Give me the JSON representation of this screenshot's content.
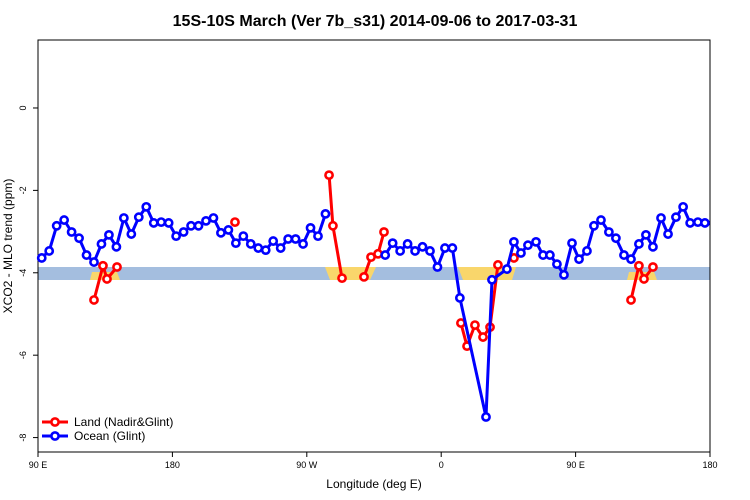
{
  "chart_data": {
    "type": "line",
    "title": "15S-10S March (Ver 7b_s31)   2014-09-06 to 2017-03-31",
    "x_label": "Longitude (deg E)",
    "y_label": "XCO2 - MLO trend (ppm)",
    "xlim": [
      90,
      540
    ],
    "xticks": [
      {
        "value": 90,
        "label": "90 E"
      },
      {
        "value": 180,
        "label": "180"
      },
      {
        "value": 270,
        "label": "90 W"
      },
      {
        "value": 360,
        "label": "0"
      },
      {
        "value": 450,
        "label": "90 E"
      },
      {
        "value": 540,
        "label": "180"
      }
    ],
    "ylim": [
      -8.35,
      1.65
    ],
    "yticks": [
      0,
      -2,
      -4,
      -6,
      -8
    ],
    "legend": "bottom-left",
    "series": [
      {
        "name": "Land (Nadir&Glint)",
        "color": "#ff0000",
        "x": [
          127.5,
          133.5,
          136.2,
          142.9,
          null,
          221.9,
          null,
          284.9,
          287.5,
          293.6,
          null,
          308.3,
          313,
          317.7,
          321.7,
          null,
          373.2,
          377.3,
          382.6,
          388,
          392.7,
          398,
          null,
          408.7,
          null,
          487.1,
          492.4,
          495.8,
          501.8
        ],
        "values": [
          -4.66,
          -3.83,
          -4.15,
          -3.86,
          null,
          -2.77,
          null,
          -1.63,
          -2.86,
          -4.13,
          null,
          -4.1,
          -3.62,
          -3.54,
          -3.01,
          null,
          -5.22,
          -5.78,
          -5.27,
          -5.56,
          -5.32,
          -3.81,
          null,
          -3.64,
          null,
          -4.66,
          -3.83,
          -4.15,
          -3.86
        ]
      },
      {
        "name": "Ocean (Glint)",
        "color": "#0000ff",
        "x": [
          92.5,
          97.5,
          102.5,
          107.5,
          112.5,
          117.5,
          122.5,
          127.5,
          132.5,
          137.5,
          142.5,
          147.5,
          152.5,
          157.5,
          162.5,
          167.5,
          172.5,
          177.5,
          182.5,
          187.5,
          192.5,
          197.5,
          202.5,
          207.5,
          212.5,
          217.5,
          222.5,
          227.5,
          232.5,
          237.5,
          242.5,
          247.5,
          252.5,
          257.5,
          262.5,
          267.5,
          272.5,
          277.5,
          282.5,
          null,
          322.5,
          327.5,
          332.5,
          337.5,
          342.5,
          347.5,
          352.5,
          357.5,
          362.5,
          367.5,
          372.5,
          390,
          394,
          404,
          408.7,
          413.4,
          418.1,
          423.5,
          428.2,
          432.8,
          437.5,
          442.2,
          447.6,
          452.3,
          457.6,
          462.3,
          467,
          472.3,
          477,
          482.4,
          487.1,
          492.4,
          497.1,
          501.8,
          507.2,
          511.9,
          517.2,
          522,
          526.7,
          531.9,
          536.6
        ],
        "values": [
          -3.64,
          -3.47,
          -2.86,
          -2.72,
          -3.01,
          -3.16,
          -3.57,
          -3.74,
          -3.3,
          -3.08,
          -3.37,
          -2.67,
          -3.06,
          -2.65,
          -2.4,
          -2.79,
          -2.77,
          -2.79,
          -3.11,
          -3.01,
          -2.86,
          -2.86,
          -2.74,
          -2.67,
          -3.03,
          -2.96,
          -3.28,
          -3.11,
          -3.3,
          -3.4,
          -3.45,
          -3.23,
          -3.4,
          -3.18,
          -3.18,
          -3.3,
          -2.91,
          -3.11,
          -2.57,
          null,
          -3.57,
          -3.28,
          -3.47,
          -3.3,
          -3.47,
          -3.37,
          -3.47,
          -3.86,
          -3.4,
          -3.4,
          -4.61,
          -7.5,
          -4.17,
          -3.91,
          -3.25,
          -3.52,
          -3.33,
          -3.25,
          -3.57,
          -3.57,
          -3.79,
          -4.05,
          -3.28,
          -3.67,
          -3.47,
          -2.86,
          -2.72,
          -3.01,
          -3.16,
          -3.57,
          -3.67,
          -3.3,
          -3.08,
          -3.37,
          -2.67,
          -3.06,
          -2.65,
          -2.4,
          -2.79,
          -2.77,
          -2.79
        ]
      }
    ]
  }
}
